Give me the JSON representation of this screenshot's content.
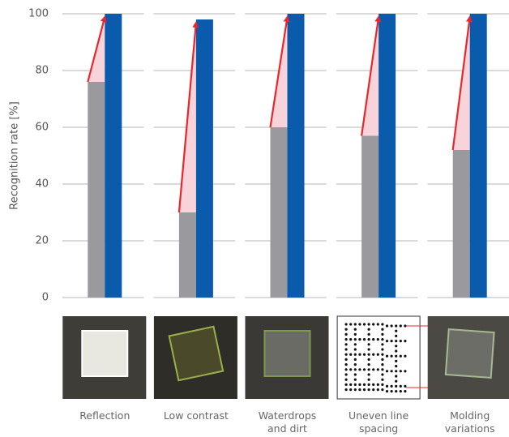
{
  "chart_data": {
    "type": "bar",
    "ylabel": "Recognition rate [%]",
    "categories": [
      "Reflection",
      "Low contrast",
      "Waterdrops\nand dirt",
      "Uneven line\nspacing",
      "Molding\nvariations"
    ],
    "series": [
      {
        "color": "#9a9a9e",
        "values": [
          76,
          30,
          60,
          57,
          52
        ]
      },
      {
        "color": "#0a5bab",
        "values": [
          100,
          98,
          100,
          100,
          100
        ]
      }
    ],
    "arrow_color": "#e8262c",
    "ylim": [
      0,
      100
    ],
    "yticks": [
      0,
      20,
      40,
      60,
      80,
      100
    ],
    "grid": true
  }
}
